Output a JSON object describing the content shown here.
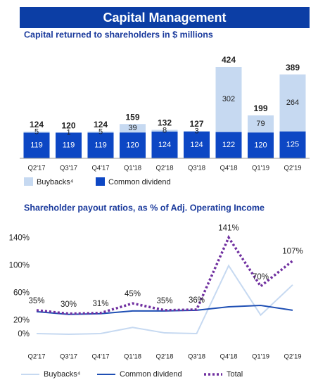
{
  "header": {
    "title": "Capital Management"
  },
  "chart_data": [
    {
      "type": "bar",
      "stacked": true,
      "title": "Capital returned to shareholders in $ millions",
      "categories": [
        "Q2'17",
        "Q3'17",
        "Q4'17",
        "Q1'18",
        "Q2'18",
        "Q3'18",
        "Q4'18",
        "Q1'19",
        "Q2'19"
      ],
      "series": [
        {
          "name": "Buybacks⁴",
          "color": "#c6d9f1",
          "label_color": "#222222",
          "values": [
            5,
            1,
            5,
            39,
            8,
            3,
            302,
            79,
            264
          ]
        },
        {
          "name": "Common dividend",
          "color": "#0d47c4",
          "label_color": "#ffffff",
          "values": [
            119,
            119,
            119,
            120,
            124,
            124,
            122,
            120,
            125
          ]
        }
      ],
      "totals": [
        124,
        120,
        124,
        159,
        132,
        127,
        424,
        199,
        389
      ]
    },
    {
      "type": "line",
      "title": "Shareholder payout ratios, as % of Adj. Operating Income",
      "categories": [
        "Q2'17",
        "Q3'17",
        "Q4'17",
        "Q1'18",
        "Q2'18",
        "Q3'18",
        "Q4'18",
        "Q1'19",
        "Q2'19"
      ],
      "ylim": [
        0,
        145
      ],
      "yticks": [
        {
          "value": 0,
          "label": "0%"
        },
        {
          "value": 20,
          "label": "20%"
        },
        {
          "value": 60,
          "label": "60%"
        },
        {
          "value": 100,
          "label": "100%"
        },
        {
          "value": 140,
          "label": "140%"
        }
      ],
      "grid": false,
      "series": [
        {
          "name": "Buybacks⁴",
          "color": "#c6d9f1",
          "line_style": "solid",
          "values": [
            1,
            0,
            1,
            10,
            2,
            1,
            100,
            28,
            72
          ]
        },
        {
          "name": "Common dividend",
          "color": "#1f4fb4",
          "line_style": "solid",
          "values": [
            33,
            29,
            30,
            34,
            34,
            35,
            40,
            42,
            35
          ]
        },
        {
          "name": "Total",
          "color": "#7030a0",
          "line_style": "dotted",
          "values": [
            35,
            30,
            31,
            45,
            35,
            36,
            141,
            70,
            107
          ],
          "value_labels": [
            "35%",
            "30%",
            "31%",
            "45%",
            "35%",
            "36%",
            "141%",
            "70%",
            "107%"
          ]
        }
      ]
    }
  ]
}
